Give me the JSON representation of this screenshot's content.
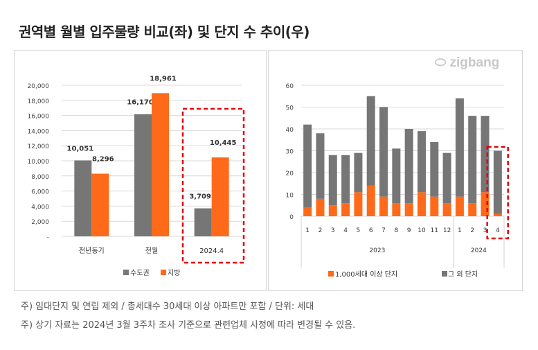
{
  "title": "권역별 월별 입주물량 비교(좌) 및 단지 수 추이(우)",
  "logo": "zigbang",
  "notes": [
    "주) 임대단지 및 연립 제외 / 총세대수 30세대 이상 아파트만 포함 / 단위: 세대",
    "주) 상기 자료는 2024년 3월 3주차 조사 기준으로 관련업체 사정에 따라 변경될 수 있음."
  ],
  "colors": {
    "gray": "#767676",
    "orange": "#ff6a1a",
    "highlight": "#e8000b"
  },
  "chart_data": [
    {
      "type": "bar",
      "categories": [
        "전년동기",
        "전월",
        "2024.4"
      ],
      "series": [
        {
          "name": "수도권",
          "values": [
            10051,
            16170,
            3709
          ],
          "labels": [
            "10,051",
            "16,170",
            "3,709"
          ]
        },
        {
          "name": "지방",
          "values": [
            8296,
            18961,
            10445
          ],
          "labels": [
            "8,296",
            "18,961",
            "10,445"
          ]
        }
      ],
      "ylim": [
        0,
        20000
      ],
      "yticks": [
        "-",
        "2,000",
        "4,000",
        "6,000",
        "8,000",
        "10,000",
        "12,000",
        "14,000",
        "16,000",
        "18,000",
        "20,000"
      ],
      "grid": true,
      "legend": "bottom",
      "highlight_category": "2024.4"
    },
    {
      "type": "bar",
      "stacked": true,
      "categories": [
        "1",
        "2",
        "3",
        "4",
        "5",
        "6",
        "7",
        "8",
        "9",
        "10",
        "11",
        "12",
        "1",
        "2",
        "3",
        "4"
      ],
      "groups": [
        {
          "name": "2023",
          "count": 12
        },
        {
          "name": "2024",
          "count": 4
        }
      ],
      "series": [
        {
          "name": "1,000세대 이상 단지",
          "values": [
            4,
            8,
            5,
            6,
            11,
            14,
            9,
            6,
            6,
            11,
            9,
            6,
            9,
            6,
            11,
            1
          ]
        },
        {
          "name": "그 외 단지",
          "values": [
            38,
            30,
            23,
            22,
            18,
            41,
            41,
            25,
            34,
            28,
            25,
            23,
            45,
            40,
            35,
            29
          ]
        }
      ],
      "ylim": [
        0,
        60
      ],
      "yticks": [
        "0",
        "10",
        "20",
        "30",
        "40",
        "50",
        "60"
      ],
      "grid": true,
      "legend": "bottom",
      "highlight_category_index": 15
    }
  ]
}
